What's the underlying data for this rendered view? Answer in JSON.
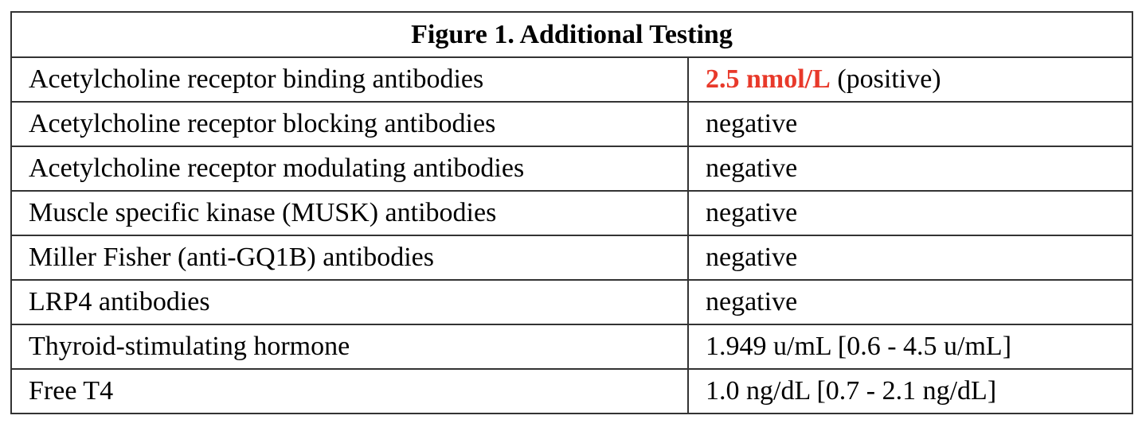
{
  "title": "Figure 1. Additional Testing",
  "colors": {
    "positive_highlight": "#e8392a",
    "border": "#333333"
  },
  "rows": [
    {
      "test": "Acetylcholine receptor binding antibodies",
      "value_highlight": "2.5 nmol/L",
      "value": " (positive)"
    },
    {
      "test": "Acetylcholine receptor blocking antibodies",
      "value": "negative"
    },
    {
      "test": "Acetylcholine receptor modulating antibodies",
      "value": "negative"
    },
    {
      "test": "Muscle specific kinase (MUSK) antibodies",
      "value": "negative"
    },
    {
      "test": "Miller Fisher (anti-GQ1B) antibodies",
      "value": "negative"
    },
    {
      "test": "LRP4 antibodies",
      "value": "negative"
    },
    {
      "test": "Thyroid-stimulating hormone",
      "value": "1.949 u/mL [0.6 - 4.5 u/mL]"
    },
    {
      "test": "Free T4",
      "value": "1.0 ng/dL [0.7 - 2.1 ng/dL]"
    }
  ]
}
